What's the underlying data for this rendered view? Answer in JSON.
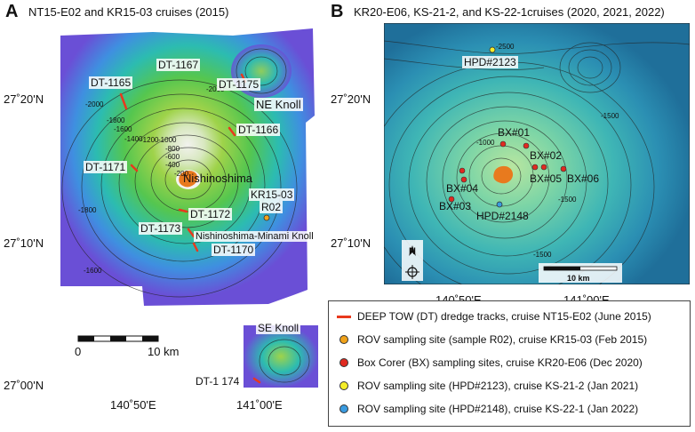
{
  "panelA": {
    "letter": "A",
    "title": "NT15-E02 and KR15-03 cruises (2015)",
    "lat_ticks": [
      "27˚20'N",
      "27˚10'N",
      "27˚00'N"
    ],
    "lon_ticks": [
      "140˚50'E",
      "141˚00'E"
    ],
    "labels": {
      "dt1167": "DT-1167",
      "dt1165": "DT-1165",
      "dt1175": "DT-1175",
      "ne_knoll": "NE Knoll",
      "dt1166": "DT-1166",
      "dt1171": "DT-1171",
      "nishinoshima": "Nishinoshima",
      "kr1503": "KR15-03",
      "r02": "R02",
      "dt1172": "DT-1172",
      "dt1173": "DT-1173",
      "minami_knoll": "Nishinoshima-Minami Knoll",
      "dt1170": "DT-1170",
      "se_knoll": "SE Knoll",
      "dt1174": "DT-1 174"
    },
    "contours": [
      "-2000",
      "-1800",
      "-1600",
      "-1400",
      "-1200",
      "-1000",
      "-800",
      "-600",
      "-400",
      "-200",
      "-2000",
      "-1800",
      "-1600"
    ],
    "scalebar": {
      "start": "0",
      "end": "10 km"
    }
  },
  "panelB": {
    "letter": "B",
    "title": "KR20-E06, KS-21-2, and KS-22-1cruises (2020, 2021, 2022)",
    "lat_ticks": [
      "27˚20'N",
      "27˚10'N"
    ],
    "lon_ticks": [
      "140˚50'E",
      "141˚00'E"
    ],
    "labels": {
      "hpd2123": "HPD#2123",
      "bx01": "BX#01",
      "bx02": "BX#02",
      "bx04": "BX#04",
      "bx05": "BX#05",
      "bx06": "BX#06",
      "bx03": "BX#03",
      "hpd2148": "HPD#2148",
      "north": "N"
    },
    "contours": [
      "-2500",
      "-1500",
      "-1000",
      "-1500",
      "-1500"
    ],
    "scalebar": "10 km"
  },
  "legend": [
    {
      "symbol": "line",
      "color": "#e8391d",
      "text": "DEEP TOW (DT) dredge tracks, cruise NT15-E02 (June 2015)"
    },
    {
      "symbol": "dot",
      "color": "#f0a21a",
      "text": "ROV sampling site (sample R02), cruise KR15-03 (Feb 2015)"
    },
    {
      "symbol": "dot",
      "color": "#e02a20",
      "text": "Box Corer (BX) sampling sites, cruise KR20-E06 (Dec 2020)"
    },
    {
      "symbol": "dot",
      "color": "#f5ee2a",
      "text": "ROV sampling site (HPD#2123), cruise KS-21-2 (Jan 2021)"
    },
    {
      "symbol": "dot",
      "color": "#3a9be0",
      "text": "ROV sampling site (HPD#2148), cruise KS-22-1 (Jan 2022)"
    }
  ]
}
